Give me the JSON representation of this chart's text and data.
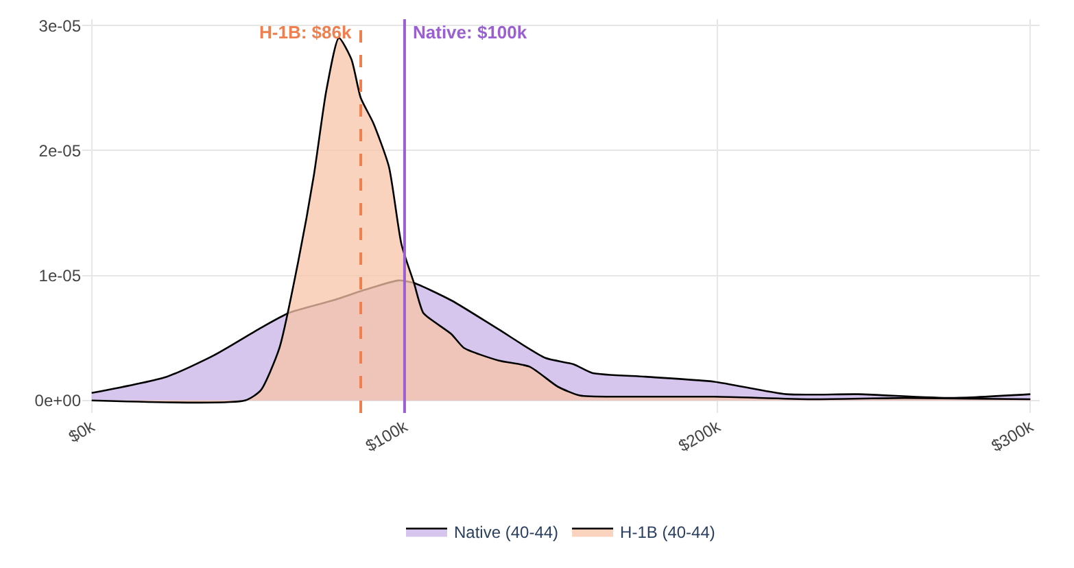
{
  "chart_data": {
    "type": "area",
    "xlim": [
      -3000,
      303000
    ],
    "ylim": [
      -1e-06,
      3.05e-05
    ],
    "xticks": [
      {
        "value": 0,
        "label": "$0k"
      },
      {
        "value": 100000,
        "label": "$100k"
      },
      {
        "value": 200000,
        "label": "$200k"
      },
      {
        "value": 300000,
        "label": "$300k"
      }
    ],
    "yticks": [
      {
        "value": 0,
        "label": "0e+00"
      },
      {
        "value": 1e-05,
        "label": "1e-05"
      },
      {
        "value": 2e-05,
        "label": "2e-05"
      },
      {
        "value": 3e-05,
        "label": "3e-05"
      }
    ],
    "series": [
      {
        "name": "Native (40-44)",
        "color": "#c8b2e6",
        "x": [
          0,
          24000,
          39000,
          54000,
          63000,
          77000,
          88000,
          98000,
          103000,
          115000,
          130000,
          145000,
          154000,
          160000,
          177000,
          199000,
          222000,
          245000,
          275000,
          300000
        ],
        "values": [
          6e-07,
          1.9e-06,
          3.6e-06,
          5.8e-06,
          7e-06,
          8e-06,
          8.9e-06,
          9.6e-06,
          9.4e-06,
          8e-06,
          5.7e-06,
          3.4e-06,
          2.9e-06,
          2.2e-06,
          1.9e-06,
          1.5e-06,
          5e-07,
          5e-07,
          2e-07,
          5e-07
        ]
      },
      {
        "name": "H-1B (40-44)",
        "color": "#f8c4a8",
        "x": [
          0,
          49000,
          54000,
          60000,
          66000,
          71000,
          75000,
          79000,
          83000,
          86000,
          90000,
          95000,
          99000,
          103000,
          106000,
          110000,
          115000,
          119000,
          130000,
          140000,
          149000,
          156000,
          169000,
          199000,
          230000,
          260000,
          300000
        ],
        "values": [
          0,
          0,
          8e-07,
          4.2e-06,
          1.11e-05,
          1.8e-05,
          2.48e-05,
          2.9e-05,
          2.73e-05,
          2.42e-05,
          2.22e-05,
          1.87e-05,
          1.25e-05,
          9.4e-06,
          7e-06,
          6.2e-06,
          5.3e-06,
          4.2e-06,
          3.2e-06,
          2.7e-06,
          1.1e-06,
          4e-07,
          3e-07,
          3e-07,
          1e-07,
          2e-07,
          1e-07
        ]
      }
    ],
    "ref_lines": [
      {
        "axis": "x",
        "value": 86000,
        "label": "H-1B: $86k",
        "color": "#f07f4f",
        "line_style": "dashed"
      },
      {
        "axis": "x",
        "value": 100000,
        "label": "Native: $100k",
        "color": "#9a5fd0",
        "line_style": "solid"
      }
    ],
    "grid": true,
    "legend": "bottom"
  }
}
